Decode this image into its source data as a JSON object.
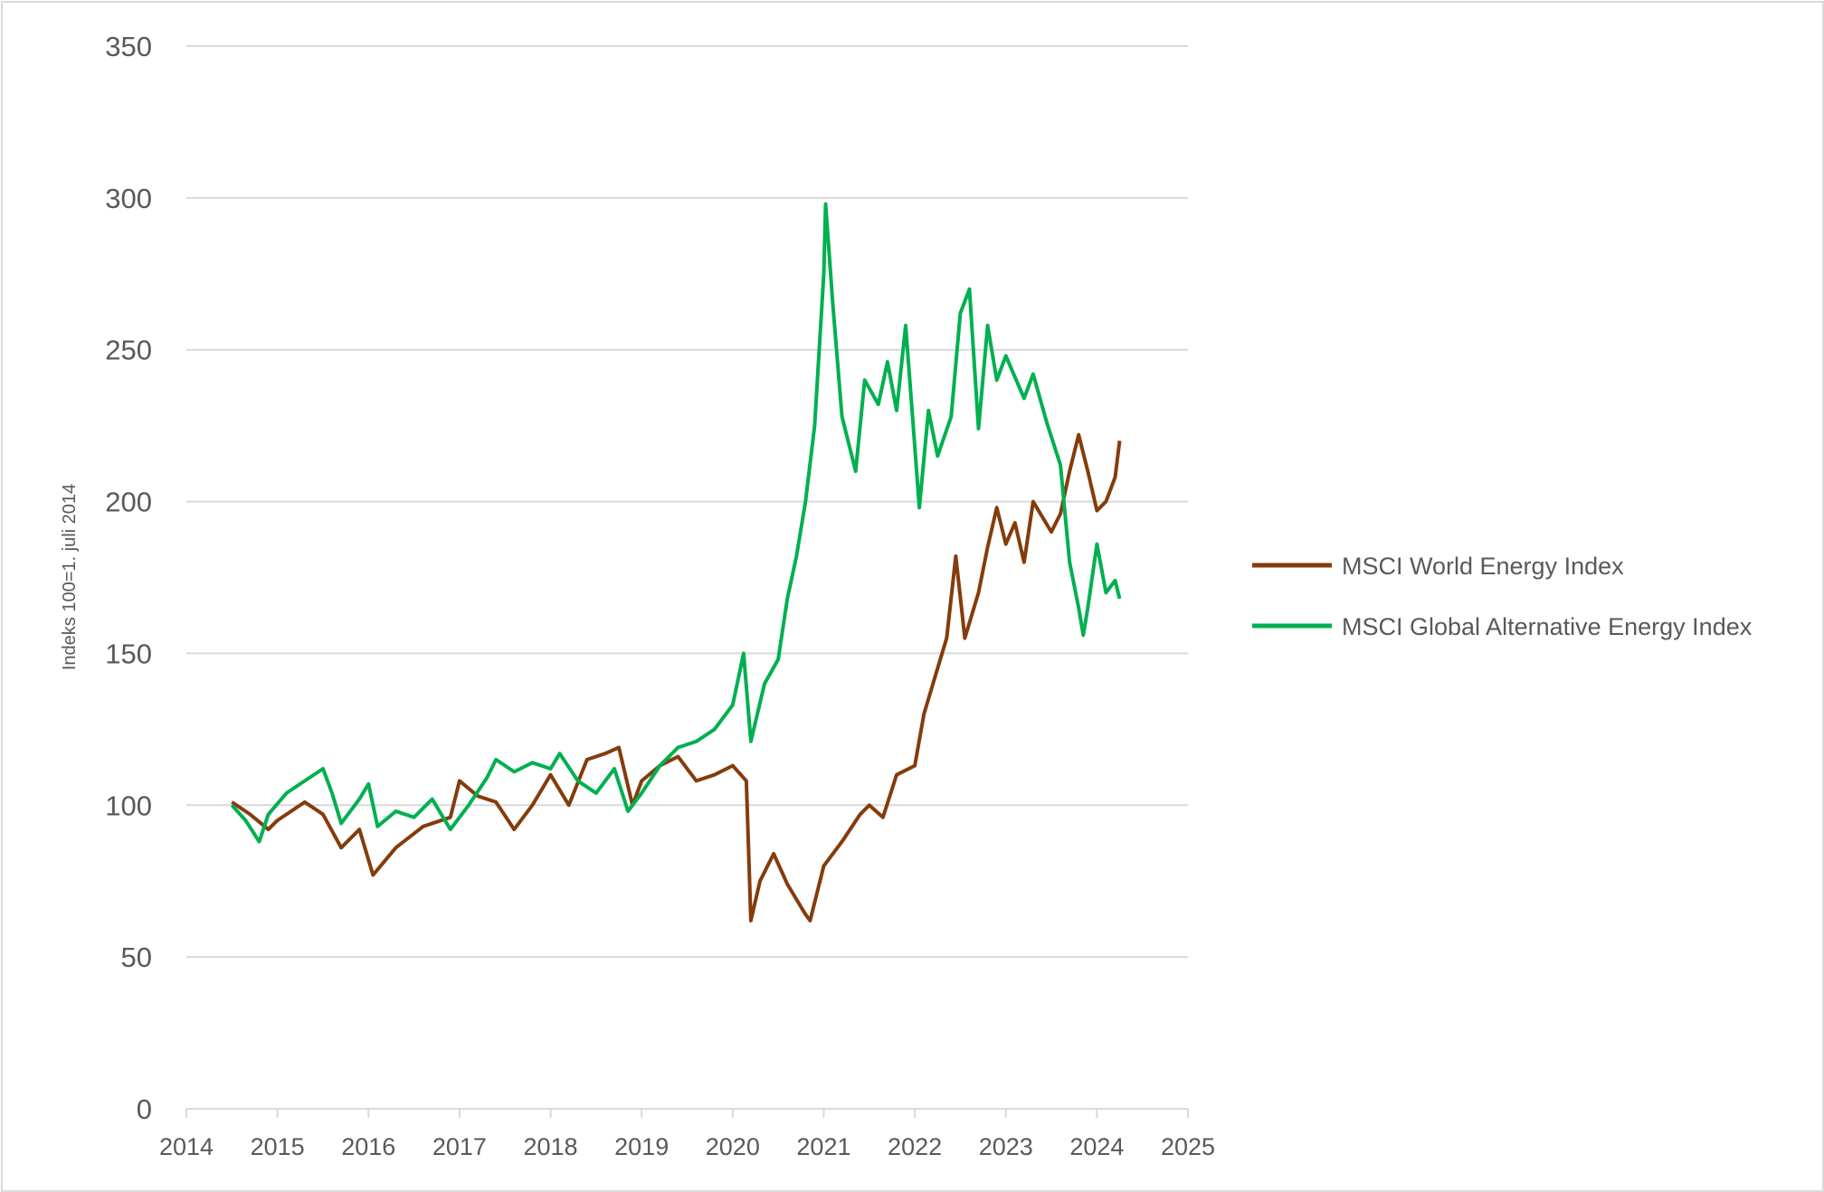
{
  "chart_data": {
    "type": "line",
    "title": "",
    "xlabel": "",
    "ylabel": "Indeks 100=1. juli 2014",
    "xlim": [
      2014,
      2025
    ],
    "ylim": [
      0,
      350
    ],
    "x_ticks": [
      "2014",
      "2015",
      "2016",
      "2017",
      "2018",
      "2019",
      "2020",
      "2021",
      "2022",
      "2023",
      "2024",
      "2025"
    ],
    "y_ticks": [
      "0",
      "50",
      "100",
      "150",
      "200",
      "250",
      "300",
      "350"
    ],
    "grid": "horizontal",
    "legend_position": "right",
    "series": [
      {
        "name": "MSCI World Energy Index",
        "color": "#843C0C",
        "x": [
          2014.5,
          2014.7,
          2014.9,
          2015.0,
          2015.3,
          2015.5,
          2015.7,
          2015.9,
          2016.05,
          2016.3,
          2016.6,
          2016.9,
          2017.0,
          2017.2,
          2017.4,
          2017.6,
          2017.8,
          2018.0,
          2018.2,
          2018.4,
          2018.6,
          2018.75,
          2018.9,
          2019.0,
          2019.2,
          2019.4,
          2019.6,
          2019.8,
          2020.0,
          2020.15,
          2020.2,
          2020.3,
          2020.45,
          2020.6,
          2020.8,
          2020.85,
          2021.0,
          2021.2,
          2021.4,
          2021.5,
          2021.65,
          2021.8,
          2022.0,
          2022.1,
          2022.2,
          2022.35,
          2022.45,
          2022.55,
          2022.7,
          2022.8,
          2022.9,
          2023.0,
          2023.1,
          2023.2,
          2023.3,
          2023.5,
          2023.6,
          2023.7,
          2023.8,
          2023.9,
          2024.0,
          2024.1,
          2024.2,
          2024.25
        ],
        "values": [
          101,
          97,
          92,
          95,
          101,
          97,
          86,
          92,
          77,
          86,
          93,
          96,
          108,
          103,
          101,
          92,
          100,
          110,
          100,
          115,
          117,
          119,
          100,
          108,
          113,
          116,
          108,
          110,
          113,
          108,
          62,
          75,
          84,
          74,
          64,
          62,
          80,
          88,
          97,
          100,
          96,
          110,
          113,
          130,
          140,
          155,
          182,
          155,
          170,
          185,
          198,
          186,
          193,
          180,
          200,
          190,
          196,
          210,
          222,
          210,
          197,
          200,
          208,
          220
        ]
      },
      {
        "name": "MSCI Global Alternative Energy Index",
        "color": "#00B050",
        "x": [
          2014.5,
          2014.65,
          2014.8,
          2014.9,
          2015.1,
          2015.3,
          2015.5,
          2015.6,
          2015.7,
          2015.9,
          2016.0,
          2016.1,
          2016.3,
          2016.5,
          2016.7,
          2016.9,
          2017.1,
          2017.3,
          2017.4,
          2017.6,
          2017.8,
          2018.0,
          2018.1,
          2018.3,
          2018.5,
          2018.7,
          2018.85,
          2019.0,
          2019.2,
          2019.4,
          2019.6,
          2019.8,
          2020.0,
          2020.12,
          2020.2,
          2020.35,
          2020.5,
          2020.6,
          2020.7,
          2020.8,
          2020.9,
          2021.0,
          2021.02,
          2021.1,
          2021.2,
          2021.35,
          2021.45,
          2021.6,
          2021.7,
          2021.8,
          2021.9,
          2022.0,
          2022.05,
          2022.15,
          2022.25,
          2022.4,
          2022.5,
          2022.6,
          2022.7,
          2022.8,
          2022.9,
          2023.0,
          2023.2,
          2023.3,
          2023.45,
          2023.6,
          2023.7,
          2023.8,
          2023.85,
          2023.9,
          2024.0,
          2024.1,
          2024.2,
          2024.25
        ],
        "values": [
          100,
          95,
          88,
          97,
          104,
          108,
          112,
          104,
          94,
          102,
          107,
          93,
          98,
          96,
          102,
          92,
          100,
          109,
          115,
          111,
          114,
          112,
          117,
          108,
          104,
          112,
          98,
          104,
          113,
          119,
          121,
          125,
          133,
          150,
          121,
          140,
          148,
          168,
          182,
          200,
          225,
          275,
          298,
          265,
          228,
          210,
          240,
          232,
          246,
          230,
          258,
          218,
          198,
          230,
          215,
          228,
          262,
          270,
          224,
          258,
          240,
          248,
          234,
          242,
          226,
          212,
          180,
          165,
          156,
          165,
          186,
          170,
          174,
          168
        ]
      }
    ]
  }
}
